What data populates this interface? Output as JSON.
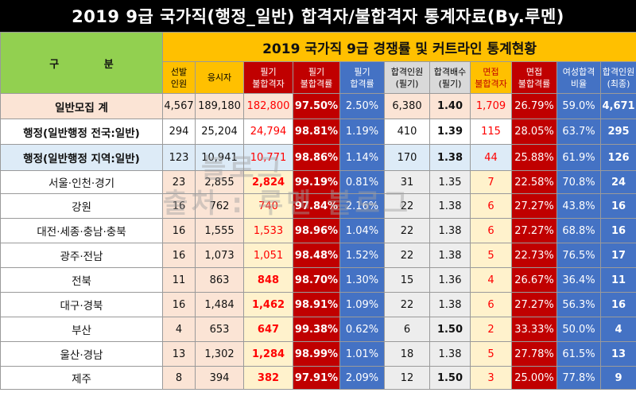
{
  "title": "2019 9급 국가직(행정_일반) 합격자/불합격자 통계자료(By.루멘)",
  "header": {
    "gubun": "구  분",
    "main": "2019 국가직 9급 경쟁률 및 커트라인 통계현황",
    "cols": [
      "선발\n인원",
      "응시자",
      "필기\n불합격자",
      "필기\n불합격률",
      "필기\n합격률",
      "합격인원\n(필기)",
      "합격배수\n(필기)",
      "면접\n불합격자",
      "면접\n불합격률",
      "여성합격\n비율",
      "합격인원\n(최종)"
    ]
  },
  "rows": [
    {
      "name": "일반모집 계",
      "v": [
        "4,567",
        "189,180",
        "182,800",
        "97.50%",
        "2.50%",
        "6,380",
        "1.40",
        "1,709",
        "26.79%",
        "59.0%",
        "4,671"
      ]
    },
    {
      "name": "행정(일반행정 전국:일반)",
      "v": [
        "294",
        "25,204",
        "24,794",
        "98.81%",
        "1.19%",
        "410",
        "1.39",
        "115",
        "28.05%",
        "63.7%",
        "295"
      ]
    },
    {
      "name": "행정(일반행정 지역:일반)",
      "v": [
        "123",
        "10,941",
        "10,771",
        "98.86%",
        "1.14%",
        "170",
        "1.38",
        "44",
        "25.88%",
        "61.9%",
        "126"
      ]
    },
    {
      "name": "서울·인천·경기",
      "v": [
        "23",
        "2,855",
        "2,824",
        "99.19%",
        "0.81%",
        "31",
        "1.35",
        "7",
        "22.58%",
        "70.8%",
        "24"
      ]
    },
    {
      "name": "강원",
      "v": [
        "16",
        "762",
        "740",
        "97.84%",
        "2.16%",
        "22",
        "1.38",
        "6",
        "27.27%",
        "43.8%",
        "16"
      ]
    },
    {
      "name": "대전·세종·충남·충북",
      "v": [
        "16",
        "1,555",
        "1,533",
        "98.96%",
        "1.04%",
        "22",
        "1.38",
        "6",
        "27.27%",
        "68.8%",
        "16"
      ]
    },
    {
      "name": "광주·전남",
      "v": [
        "16",
        "1,073",
        "1,051",
        "98.48%",
        "1.52%",
        "22",
        "1.38",
        "5",
        "22.73%",
        "76.5%",
        "17"
      ]
    },
    {
      "name": "전북",
      "v": [
        "11",
        "863",
        "848",
        "98.70%",
        "1.30%",
        "15",
        "1.36",
        "4",
        "26.67%",
        "36.4%",
        "11"
      ]
    },
    {
      "name": "대구·경북",
      "v": [
        "16",
        "1,484",
        "1,462",
        "98.91%",
        "1.09%",
        "22",
        "1.38",
        "6",
        "27.27%",
        "56.3%",
        "16"
      ]
    },
    {
      "name": "부산",
      "v": [
        "4",
        "653",
        "647",
        "99.38%",
        "0.62%",
        "6",
        "1.50",
        "2",
        "33.33%",
        "50.0%",
        "4"
      ]
    },
    {
      "name": "울산·경남",
      "v": [
        "13",
        "1,302",
        "1,284",
        "98.99%",
        "1.01%",
        "18",
        "1.38",
        "5",
        "27.78%",
        "61.5%",
        "13"
      ]
    },
    {
      "name": "제주",
      "v": [
        "8",
        "394",
        "382",
        "97.91%",
        "2.09%",
        "12",
        "1.50",
        "3",
        "25.00%",
        "77.8%",
        "9"
      ]
    }
  ],
  "watermark": [
    "블로그",
    "출처 : 루멘 블로그"
  ],
  "colors": {
    "title_bg": "#000000",
    "header_green": "#92d050",
    "header_yellow": "#ffc000",
    "dark_red": "#c00000",
    "blue": "#4472c4"
  }
}
